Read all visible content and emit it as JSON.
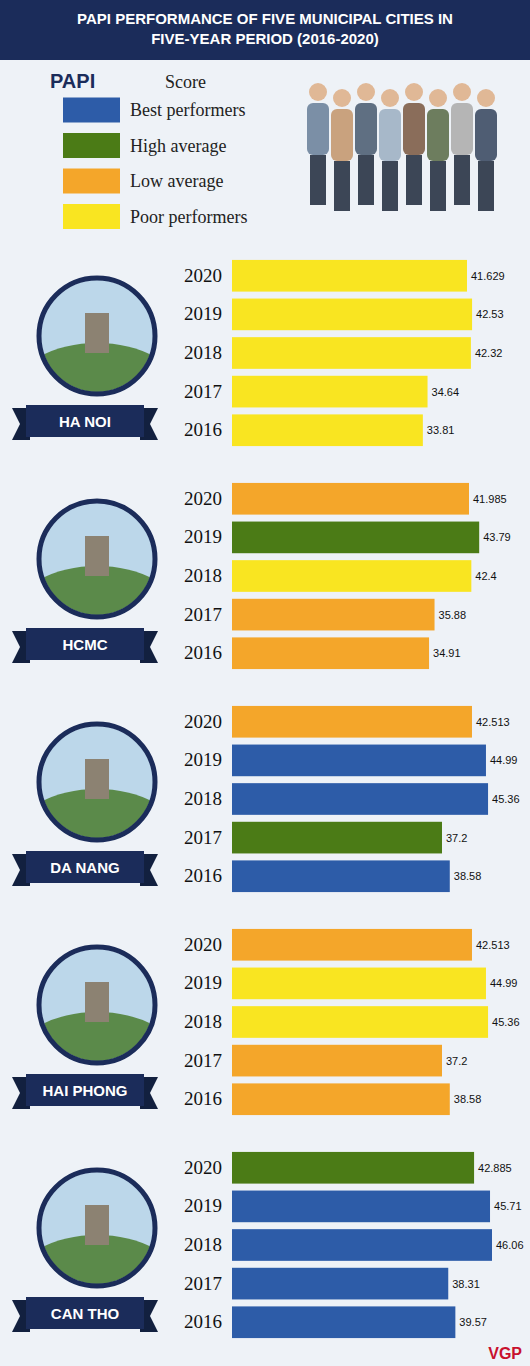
{
  "header": {
    "title": "PAPI PERFORMANCE OF FIVE MUNICIPAL CITIES IN FIVE-YEAR PERIOD (2016-2020)"
  },
  "legend": {
    "title": "PAPI",
    "subtitle": "Score",
    "items": [
      {
        "label": "Best performers",
        "color": "#2d5ca8"
      },
      {
        "label": "High average",
        "color": "#4b7b16"
      },
      {
        "label": "Low average",
        "color": "#f4a62a"
      },
      {
        "label": "Poor performers",
        "color": "#f9e521"
      }
    ]
  },
  "chart_data": [
    {
      "type": "bar",
      "orientation": "horizontal",
      "title": "HA NOI",
      "categories": [
        "2020",
        "2019",
        "2018",
        "2017",
        "2016"
      ],
      "values": [
        41.629,
        42.53,
        42.32,
        34.64,
        33.81
      ],
      "colors": [
        "#f9e521",
        "#f9e521",
        "#f9e521",
        "#f9e521",
        "#f9e521"
      ],
      "data_labels": true,
      "tick_labels": "y"
    },
    {
      "type": "bar",
      "orientation": "horizontal",
      "title": "HCMC",
      "categories": [
        "2020",
        "2019",
        "2018",
        "2017",
        "2016"
      ],
      "values": [
        41.985,
        43.79,
        42.4,
        35.88,
        34.91
      ],
      "colors": [
        "#f4a62a",
        "#4b7b16",
        "#f9e521",
        "#f4a62a",
        "#f4a62a"
      ],
      "data_labels": true,
      "tick_labels": "y"
    },
    {
      "type": "bar",
      "orientation": "horizontal",
      "title": "DA NANG",
      "categories": [
        "2020",
        "2019",
        "2018",
        "2017",
        "2016"
      ],
      "values": [
        42.513,
        44.99,
        45.36,
        37.2,
        38.58
      ],
      "colors": [
        "#f4a62a",
        "#2d5ca8",
        "#2d5ca8",
        "#4b7b16",
        "#2d5ca8"
      ],
      "data_labels": true,
      "tick_labels": "y"
    },
    {
      "type": "bar",
      "orientation": "horizontal",
      "title": "HAI PHONG",
      "categories": [
        "2020",
        "2019",
        "2018",
        "2017",
        "2016"
      ],
      "values": [
        42.513,
        44.99,
        45.36,
        37.2,
        38.58
      ],
      "colors": [
        "#f4a62a",
        "#f9e521",
        "#f9e521",
        "#f4a62a",
        "#f4a62a"
      ],
      "data_labels": true,
      "tick_labels": "y"
    },
    {
      "type": "bar",
      "orientation": "horizontal",
      "title": "CAN THO",
      "categories": [
        "2020",
        "2019",
        "2018",
        "2017",
        "2016"
      ],
      "values": [
        42.885,
        45.71,
        46.06,
        38.31,
        39.57
      ],
      "colors": [
        "#4b7b16",
        "#2d5ca8",
        "#2d5ca8",
        "#2d5ca8",
        "#2d5ca8"
      ],
      "data_labels": true,
      "tick_labels": "y"
    }
  ],
  "credit": "VGP"
}
